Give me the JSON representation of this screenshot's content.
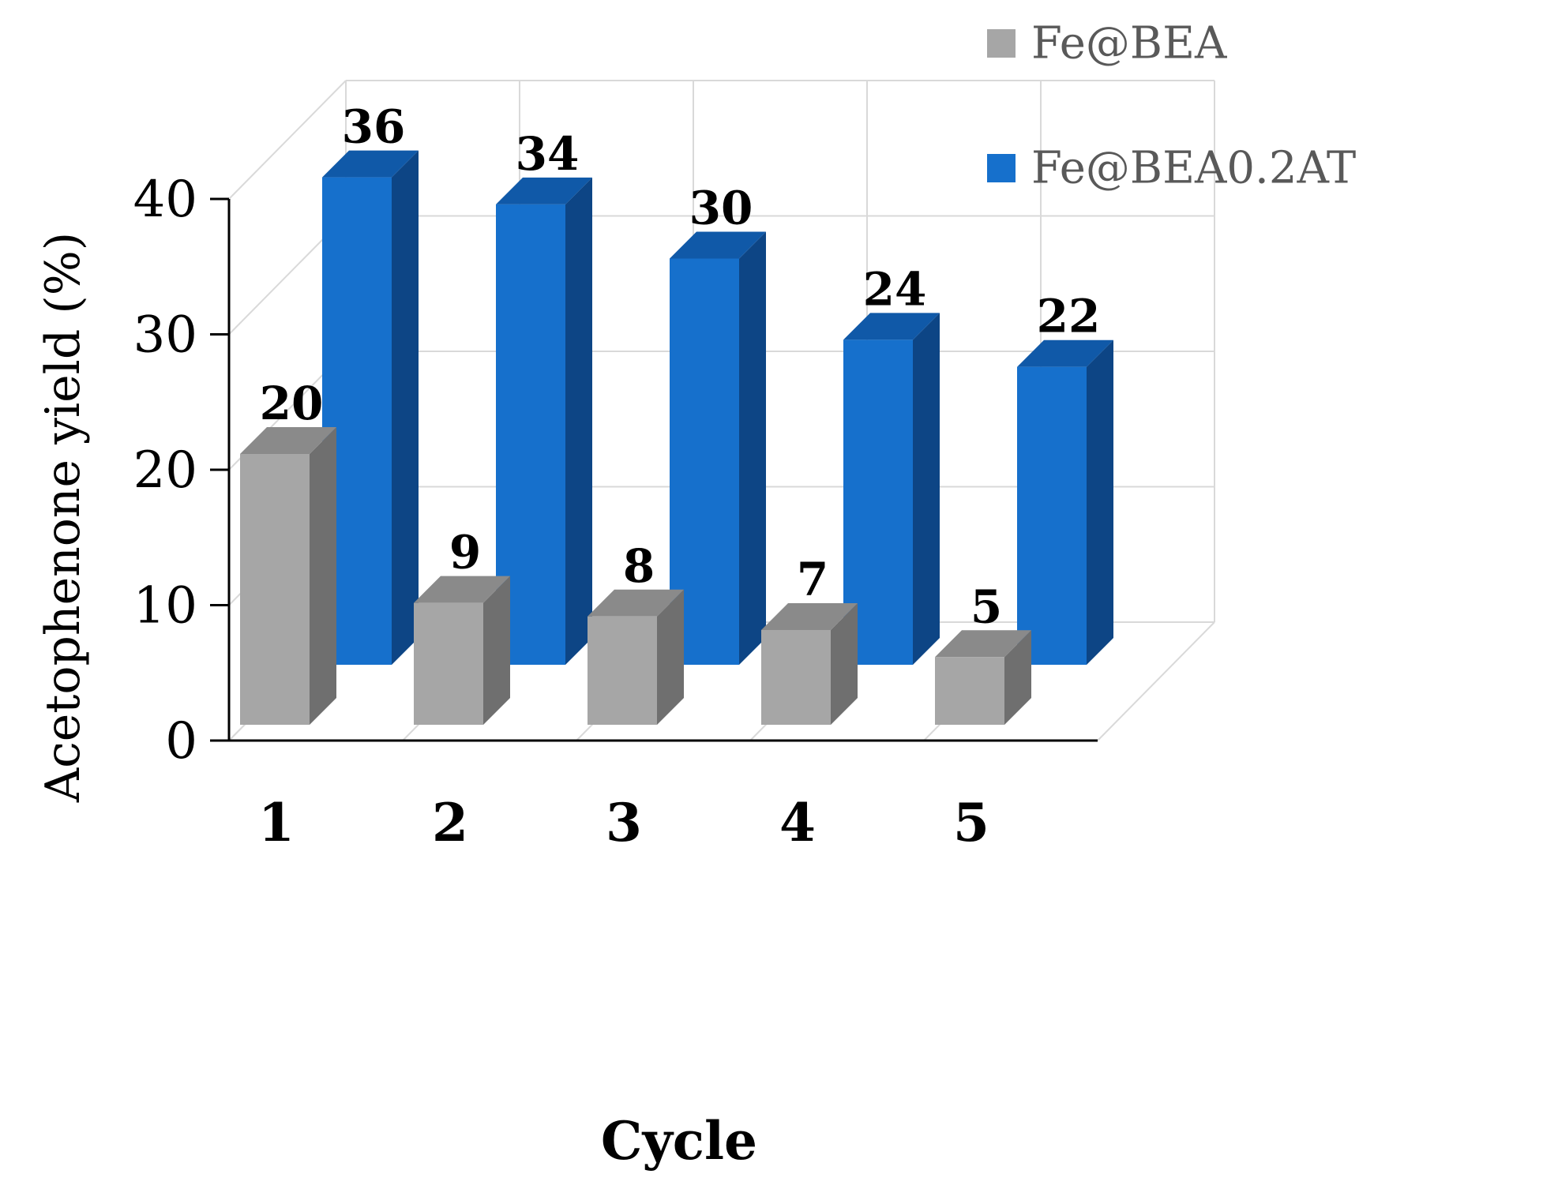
{
  "colors": {
    "background": "#ffffff",
    "grid": "#d9d9d9",
    "axis": "#000000",
    "series_0_front": "#a6a6a6",
    "series_0_side": "#6f6f6f",
    "series_0_top": "#8a8a8a",
    "series_1_front": "#1670cc",
    "series_1_side": "#0d4585",
    "series_1_top": "#1059a8",
    "legend_text": "#595959",
    "text": "#000000"
  },
  "chart_data": {
    "type": "bar",
    "style": "3d-clustered-column",
    "title": "",
    "xlabel": "Cycle",
    "ylabel": "Acetophenone yield (%)",
    "categories": [
      "1",
      "2",
      "3",
      "4",
      "5"
    ],
    "ylim": [
      0,
      40
    ],
    "yticks": [
      0,
      10,
      20,
      30,
      40
    ],
    "grid": true,
    "legend_position": "top-right",
    "series": [
      {
        "name": "Fe@BEA",
        "values": [
          20,
          9,
          8,
          7,
          5
        ],
        "labels": [
          "20",
          "9",
          "8",
          "7",
          "5"
        ]
      },
      {
        "name": "Fe@BEA0.2AT",
        "values": [
          36,
          34,
          30,
          24,
          22
        ],
        "labels": [
          "36",
          "34",
          "30",
          "24",
          "22"
        ]
      }
    ]
  }
}
